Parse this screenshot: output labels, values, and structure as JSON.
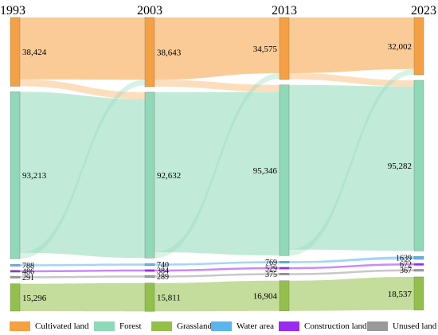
{
  "chart_data": {
    "type": "sankey",
    "years": [
      "1993",
      "2003",
      "2013",
      "2023"
    ],
    "categories": [
      "Cultivated land",
      "Forest",
      "Grassland",
      "Water area",
      "Construction land",
      "Unused land"
    ],
    "colors": {
      "Cultivated land": "#f5a042",
      "Forest": "#8fd9b8",
      "Grassland": "#93c04a",
      "Water area": "#5bb5ea",
      "Construction land": "#9a2bf0",
      "Unused land": "#9a9a9a"
    },
    "node_labels": [
      [
        "38,424",
        "93,213",
        "15,296",
        "788",
        "486",
        "291"
      ],
      [
        "38,643",
        "92,632",
        "15,811",
        "740",
        "384",
        "289"
      ],
      [
        "34,575",
        "95,346",
        "16,904",
        "769",
        "529",
        "375"
      ],
      [
        "32,002",
        "95,282",
        "18,537",
        "1639",
        "672",
        "367"
      ]
    ],
    "values": [
      {
        "year": "1993",
        "Cultivated land": 38424,
        "Forest": 93213,
        "Grassland": 15296,
        "Water area": 788,
        "Construction land": 486,
        "Unused land": 291
      },
      {
        "year": "2003",
        "Cultivated land": 38643,
        "Forest": 92632,
        "Grassland": 15811,
        "Water area": 740,
        "Construction land": 384,
        "Unused land": 289
      },
      {
        "year": "2013",
        "Cultivated land": 34575,
        "Forest": 95346,
        "Grassland": 16904,
        "Water area": 769,
        "Construction land": 529,
        "Unused land": 375
      },
      {
        "year": "2023",
        "Cultivated land": 32002,
        "Forest": 95282,
        "Grassland": 18537,
        "Water area": 1639,
        "Construction land": 672,
        "Unused land": 367
      }
    ],
    "legend": [
      "Cultivated land",
      "Forest",
      "Grassland",
      "Water area",
      "Construction land",
      "Unused land"
    ],
    "legend_placement": "bottom"
  }
}
